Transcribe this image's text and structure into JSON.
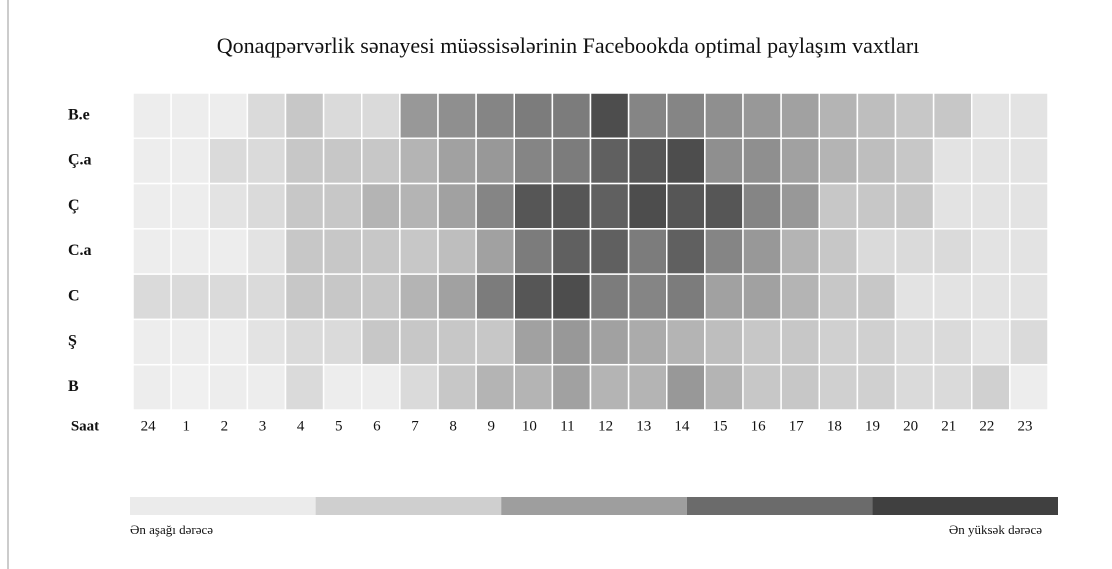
{
  "chart_data": {
    "type": "heatmap",
    "title": "Qonaqpərvərlik sənayesi müəssisələrinin Facebookda optimal paylaşım vaxtları",
    "x_label": "Saat",
    "x_categories": [
      "24",
      "1",
      "2",
      "3",
      "4",
      "5",
      "6",
      "7",
      "8",
      "9",
      "10",
      "11",
      "12",
      "13",
      "14",
      "15",
      "16",
      "17",
      "18",
      "19",
      "20",
      "21",
      "22",
      "23"
    ],
    "y_categories": [
      "B.e",
      "Ç.a",
      "Ç",
      "C.a",
      "C",
      "Ş",
      "B"
    ],
    "values": [
      [
        5,
        5,
        5,
        15,
        25,
        15,
        15,
        50,
        55,
        60,
        65,
        65,
        90,
        60,
        60,
        55,
        50,
        45,
        35,
        30,
        25,
        25,
        10,
        10
      ],
      [
        5,
        5,
        15,
        15,
        25,
        25,
        25,
        35,
        45,
        50,
        60,
        65,
        80,
        85,
        90,
        55,
        55,
        45,
        35,
        30,
        25,
        10,
        10,
        10
      ],
      [
        5,
        5,
        10,
        15,
        25,
        25,
        35,
        35,
        45,
        60,
        85,
        85,
        80,
        90,
        85,
        85,
        60,
        50,
        25,
        25,
        25,
        10,
        10,
        10
      ],
      [
        5,
        5,
        5,
        10,
        25,
        25,
        25,
        25,
        30,
        45,
        65,
        80,
        80,
        65,
        80,
        60,
        50,
        35,
        25,
        15,
        15,
        15,
        10,
        10
      ],
      [
        15,
        15,
        15,
        15,
        25,
        25,
        25,
        35,
        45,
        65,
        85,
        90,
        65,
        60,
        65,
        45,
        45,
        35,
        25,
        25,
        10,
        10,
        10,
        10
      ],
      [
        5,
        5,
        5,
        10,
        15,
        15,
        25,
        25,
        25,
        25,
        45,
        50,
        45,
        40,
        35,
        30,
        25,
        25,
        20,
        20,
        15,
        15,
        10,
        15
      ],
      [
        5,
        3,
        5,
        5,
        15,
        5,
        5,
        15,
        25,
        35,
        35,
        45,
        35,
        35,
        50,
        35,
        25,
        25,
        20,
        20,
        15,
        15,
        20,
        5
      ]
    ],
    "vlim": [
      0,
      100
    ],
    "color_low": "#f6f6f6",
    "color_high": "#3a3a3a",
    "legend": {
      "colors": [
        "#ebebeb",
        "#cfcfcf",
        "#9e9e9e",
        "#6b6b6b",
        "#404040"
      ],
      "low_label": "Ən aşağı dərəcə",
      "high_label": "Ən yüksək dərəcə"
    }
  }
}
